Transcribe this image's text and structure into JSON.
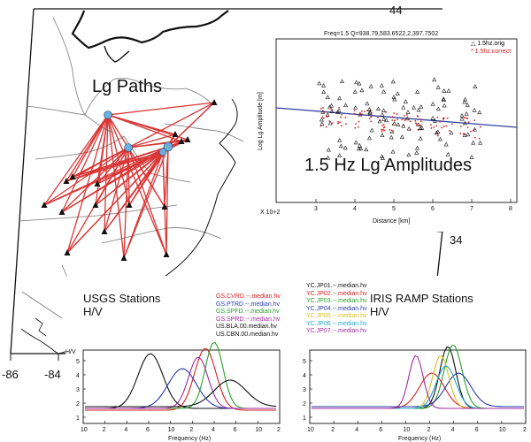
{
  "map": {
    "title": "Lg Paths",
    "lat_labels": [
      "44",
      "34"
    ],
    "lon_labels": [
      "-86",
      "-84"
    ],
    "path_color": "#d62020"
  },
  "amp_plot": {
    "header": "Freq=1.5  Q=938.79,583.6522,2,397.7502",
    "title": "1.5 Hz Lg Amplitudes",
    "ylabel": "Log Lg Amplitude [m]",
    "xlabel": "Distance [km]",
    "x_multiplier": "X 10+2",
    "xticks": [
      "3",
      "4",
      "5",
      "6",
      "7",
      "8"
    ],
    "legend": [
      {
        "label": "1.5hz.orig",
        "color": "#000000",
        "marker": "triangle"
      },
      {
        "label": "1.5hz.correct",
        "color": "#d62020",
        "marker": "star"
      }
    ],
    "fit_color": "#3040a0"
  },
  "usgs_plot": {
    "title_line1": "USGS Stations",
    "title_line2": "H/V",
    "ylabel": "H/V",
    "xlabel": "Frequency (Hz)",
    "yticks": [
      "1",
      "2",
      "3",
      "4",
      "5"
    ],
    "xticks": [
      "10",
      "2",
      "4",
      "6",
      "10",
      "2",
      "4",
      "6",
      "10",
      "2"
    ],
    "legend": [
      {
        "label": "GS.CVRD.--.median.hv",
        "color": "#d62020"
      },
      {
        "label": "GS.PTRD.--.median.hv",
        "color": "#2a3aa8"
      },
      {
        "label": "GS.SPFD.--.median.hv",
        "color": "#27a02a"
      },
      {
        "label": "GS.SPRD.--.median.hv",
        "color": "#a02aa0"
      },
      {
        "label": "US.BLA.00.median.hv",
        "color": "#111111"
      },
      {
        "label": "US.CBN.00.median.hv",
        "color": "#111111"
      }
    ]
  },
  "iris_plot": {
    "title_line1": "IRIS RAMP Stations",
    "title_line2": "H/V",
    "xlabel": "Frequency (Hz)",
    "yticks": [
      "1",
      "2",
      "3",
      "4",
      "5"
    ],
    "xticks": [
      "10",
      "2",
      "4",
      "6",
      "10",
      "2",
      "4",
      "6",
      "10",
      "2"
    ],
    "legend": [
      {
        "label": "YC.JP01.--.median.hv",
        "color": "#111111"
      },
      {
        "label": "YC.JP02.--.median.hv",
        "color": "#d62020"
      },
      {
        "label": "YC.JP03.--.median.hv",
        "color": "#27a02a"
      },
      {
        "label": "YC.JP04.--.median.hv",
        "color": "#2a3aa8"
      },
      {
        "label": "YC.JP05.--.median.hv",
        "color": "#d8c020"
      },
      {
        "label": "YC.JP06.--.median.hv",
        "color": "#20a8c8"
      },
      {
        "label": "YC.JP07.--.median.hv",
        "color": "#a02aa0"
      }
    ]
  }
}
